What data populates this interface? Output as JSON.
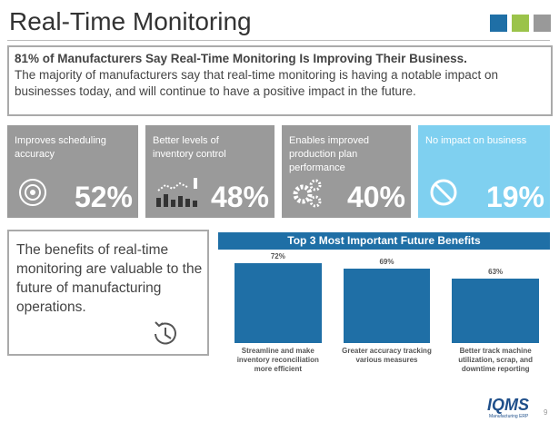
{
  "header": {
    "title": "Real-Time Monitoring"
  },
  "summary": {
    "headline": "81% of Manufacturers Say Real-Time Monitoring Is Improving Their Business.",
    "body": "The majority of manufacturers say that real-time monitoring is having a notable impact on businesses today, and will continue to have a positive impact in the future."
  },
  "cards": [
    {
      "label": "Improves scheduling accuracy",
      "stat": "52%"
    },
    {
      "label": "Better levels of inventory control",
      "stat": "48%"
    },
    {
      "label": "Enables improved production plan performance",
      "stat": "40%"
    },
    {
      "label": "No impact on business",
      "stat": "19%"
    }
  ],
  "callout": {
    "text": "The benefits of real-time monitoring are valuable to the future of manufacturing operations."
  },
  "chart_data": {
    "type": "bar",
    "title": "Top 3 Most Important Future Benefits",
    "categories": [
      "Streamline and make inventory reconciliation more efficient",
      "Greater accuracy tracking various measures",
      "Better track machine utilization, scrap, and downtime reporting"
    ],
    "values": [
      72,
      69,
      63
    ],
    "value_labels": [
      "72%",
      "69%",
      "63%"
    ],
    "color": "#1f6fa6",
    "ylim": [
      25,
      80
    ]
  },
  "footer": {
    "logo": "IQMS",
    "logo_sub": "Manufacturing ERP",
    "page": "9"
  }
}
